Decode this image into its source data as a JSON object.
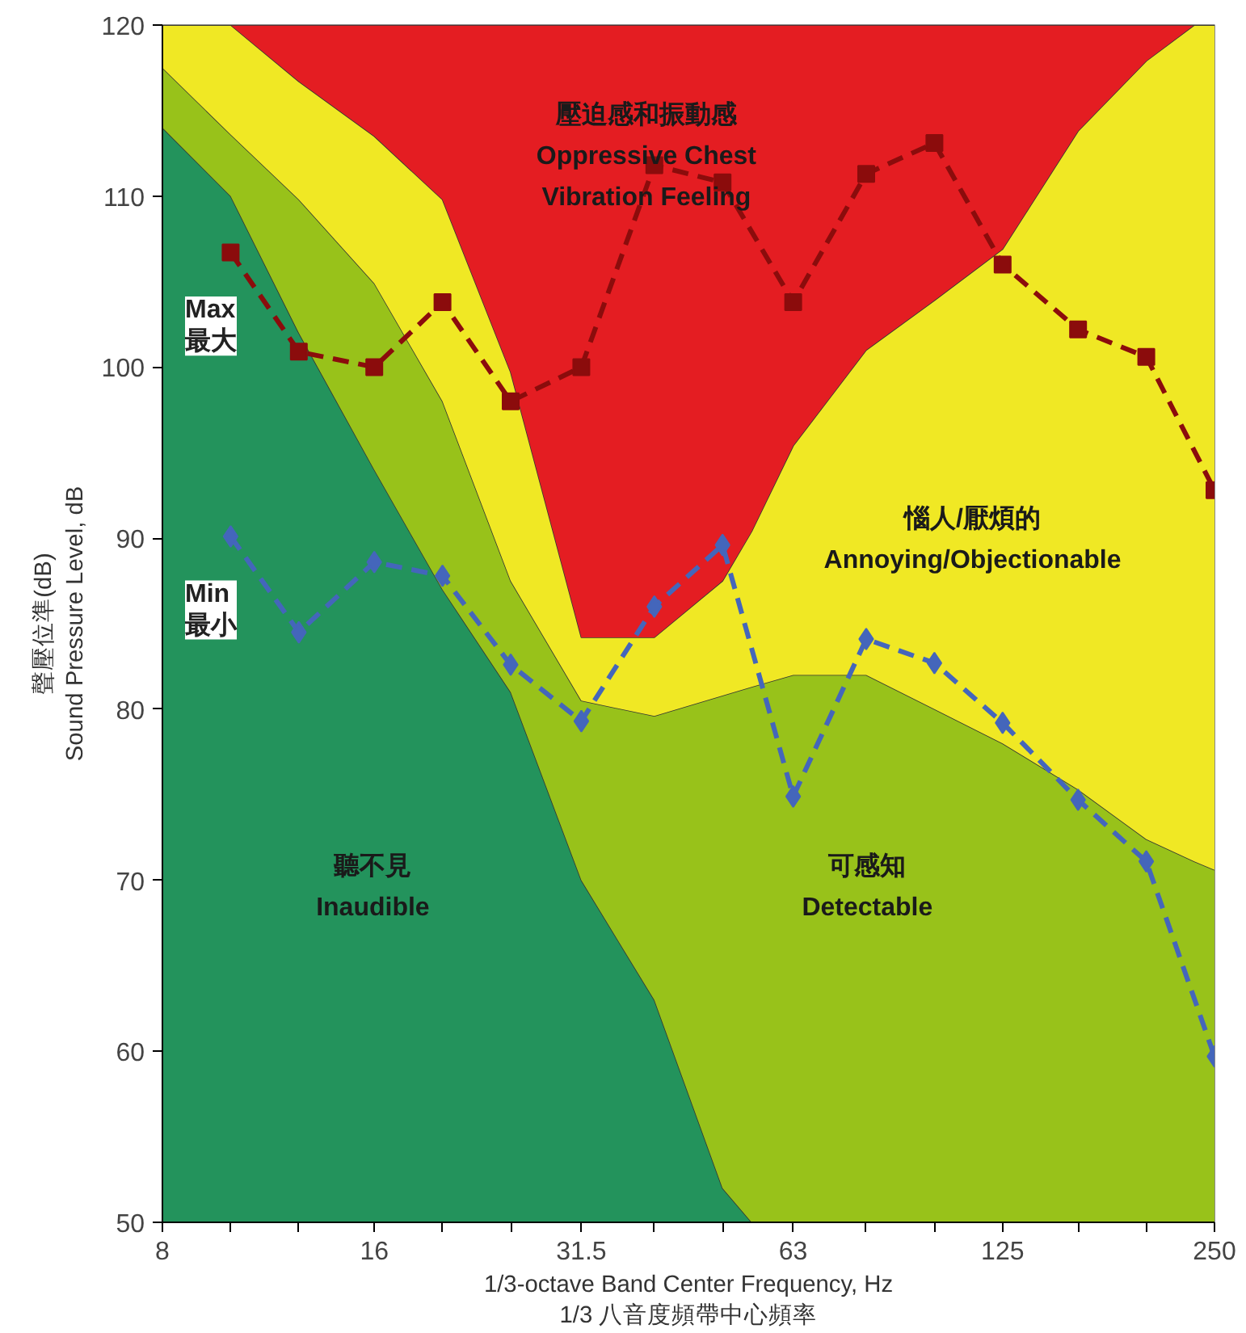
{
  "chart_data": {
    "type": "area",
    "xlabel": "1/3-octave Band Center Frequency, Hz\n1/3 八音度頻帶中心頻率",
    "ylabel": "聲壓位準(dB)\nSound Pressure Level, dB",
    "log": "x",
    "xlim": [
      8,
      250
    ],
    "ylim": [
      50,
      120
    ],
    "xticks": [
      8,
      {
        "value": 10,
        "label": null
      },
      {
        "value": 12.5,
        "label": null
      },
      16,
      {
        "value": 20,
        "label": null
      },
      {
        "value": 25,
        "label": null
      },
      31.5,
      {
        "value": 40,
        "label": null
      },
      {
        "value": 50,
        "label": null
      },
      63,
      {
        "value": 80,
        "label": null
      },
      {
        "value": 100,
        "label": null
      },
      125,
      {
        "value": 160,
        "label": null
      },
      {
        "value": 200,
        "label": null
      },
      250
    ],
    "yticks": [
      50,
      60,
      70,
      80,
      90,
      100,
      110,
      120
    ],
    "legend": false,
    "line_style": "dashed",
    "x": [
      8,
      10,
      12.5,
      16,
      20,
      25,
      31.5,
      40,
      50,
      55,
      63,
      80,
      100,
      125,
      160,
      200,
      234,
      250
    ],
    "series": [
      {
        "color": "#23935c",
        "values": [
          114,
          110,
          102,
          94,
          87,
          81,
          70,
          63,
          52,
          50,
          50,
          50,
          50,
          50,
          50,
          50,
          50,
          50
        ]
      },
      {
        "color": "#98c21a",
        "values": [
          117.5,
          113.6,
          109.8,
          104.9,
          98.0,
          87.5,
          80.5,
          79.6,
          80.8,
          81.3,
          82.0,
          82.0,
          80.0,
          78.0,
          75.3,
          72.4,
          71.1,
          70.6
        ]
      },
      {
        "color": "#f0e824",
        "values": [
          120,
          120,
          116.7,
          113.5,
          109.8,
          99.7,
          84.2,
          84.2,
          87.5,
          90.4,
          95.4,
          101.0,
          103.9,
          106.9,
          113.8,
          117.9,
          120,
          120
        ]
      },
      {
        "color": "#e41d22",
        "values": [
          120,
          120,
          120,
          120,
          120,
          120,
          120,
          120,
          120,
          120,
          120,
          120,
          120,
          120,
          120,
          120,
          120,
          120
        ]
      },
      {
        "type": "line",
        "name": "Max\n最大",
        "color": "#8b0c0c",
        "marker": "square",
        "x": [
          10,
          12.5,
          16,
          20,
          25,
          31.5,
          40,
          50,
          63,
          80,
          100,
          125,
          160,
          200,
          250
        ],
        "values": [
          106.7,
          100.9,
          100.0,
          103.8,
          98.0,
          100.0,
          111.8,
          110.8,
          103.8,
          111.3,
          113.1,
          106.0,
          102.2,
          100.6,
          92.8
        ]
      },
      {
        "type": "line",
        "name": "Min\n最小",
        "color": "#4466bb",
        "marker": "diamond",
        "x": [
          10,
          12.5,
          16,
          20,
          25,
          31.5,
          40,
          50,
          63,
          80,
          100,
          125,
          160,
          200,
          250
        ],
        "values": [
          90.1,
          84.5,
          88.6,
          87.8,
          82.6,
          79.3,
          86.0,
          89.6,
          74.9,
          84.1,
          82.7,
          79.2,
          74.7,
          71.1,
          59.7
        ]
      }
    ],
    "annotations": [
      "壓迫感和振動感\nOppressive Chest\nVibration Feeling",
      "惱人/厭煩的\nAnnoying/Objectionable",
      "聽不見\nInaudible",
      "可感知\nDetectable"
    ]
  }
}
